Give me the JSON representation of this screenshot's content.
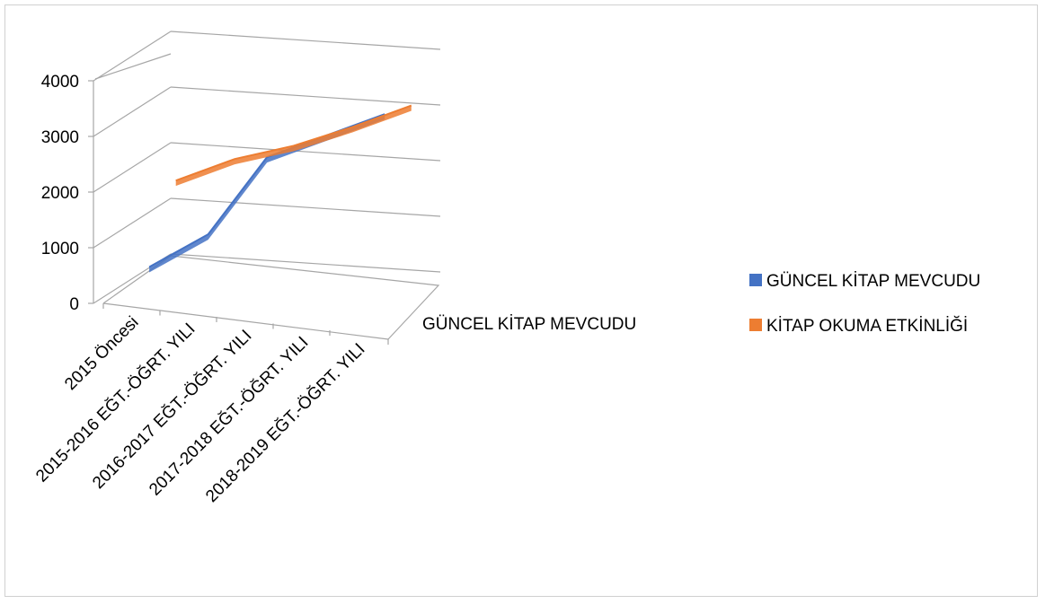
{
  "chart_data": {
    "type": "line",
    "variant": "3d-line",
    "title": "",
    "categories": [
      "2015 Öncesi",
      "2015-2016 EĞT.-ÖĞRT. YILI",
      "2016-2017  EĞT.-ÖĞRT. YILI",
      "2017-2018 EĞT.-ÖĞRT. YILI",
      "2018-2019 EĞT.-ÖĞRT. YILI"
    ],
    "series": [
      {
        "name": "GÜNCEL KİTAP MEVCUDU",
        "values": [
          600,
          1300,
          2800,
          3300,
          3800
        ],
        "color": "#4472C4"
      },
      {
        "name": "KİTAP OKUMA ETKİNLİĞİ",
        "values": [
          1800,
          2300,
          2650,
          3100,
          3600
        ],
        "color": "#ED7D31"
      }
    ],
    "ylim": [
      0,
      4000
    ],
    "yticks": [
      0,
      1000,
      2000,
      3000,
      4000
    ],
    "depth_axis_label": "GÜNCEL KİTAP MEVCUDU",
    "grid": true,
    "legend_position": "right"
  }
}
